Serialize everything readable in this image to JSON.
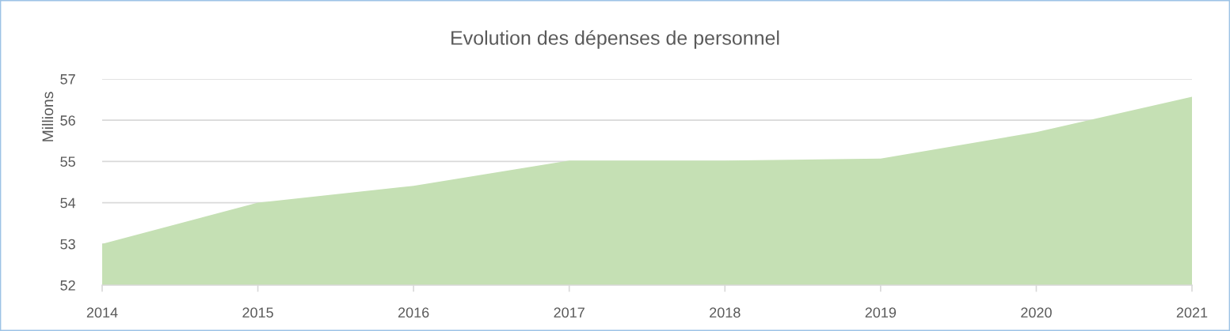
{
  "chart_data": {
    "type": "area",
    "title": "Evolution des dépenses de personnel",
    "ylabel": "Millions",
    "categories": [
      "2014",
      "2015",
      "2016",
      "2017",
      "2018",
      "2019",
      "2020",
      "2021"
    ],
    "series": [
      {
        "color": "#c5e0b4",
        "values": [
          53.0,
          54.0,
          54.41,
          55.02,
          55.02,
          55.07,
          55.71,
          56.57
        ]
      }
    ],
    "ylim": [
      52,
      57
    ],
    "yticks": [
      52,
      53,
      54,
      55,
      56,
      57
    ],
    "grid": "y"
  }
}
